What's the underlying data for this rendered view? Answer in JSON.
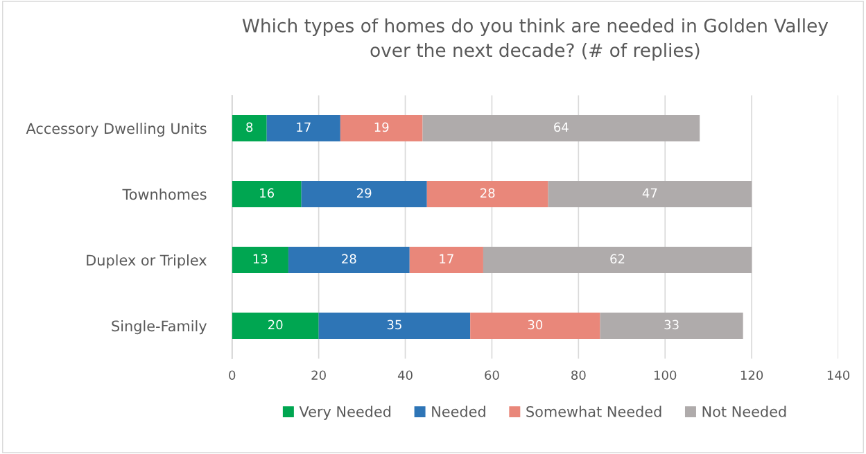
{
  "chart_data": {
    "type": "bar",
    "orientation": "horizontal",
    "stacked": true,
    "title": "Which types of homes do you think are needed in Golden Valley\nover the next decade? (# of replies)",
    "categories": [
      "Accessory Dwelling Units",
      "Townhomes",
      "Duplex or Triplex",
      "Single-Family"
    ],
    "series": [
      {
        "name": "Very Needed",
        "color": "#00a651",
        "values": [
          8,
          16,
          13,
          20
        ]
      },
      {
        "name": "Needed",
        "color": "#2e75b6",
        "values": [
          17,
          29,
          28,
          35
        ]
      },
      {
        "name": "Somewhat Needed",
        "color": "#e9877a",
        "values": [
          19,
          28,
          17,
          30
        ]
      },
      {
        "name": "Not Needed",
        "color": "#afabab",
        "values": [
          64,
          47,
          62,
          33
        ]
      }
    ],
    "xlim": [
      0,
      140
    ],
    "xticks": [
      0,
      20,
      40,
      60,
      80,
      100,
      120,
      140
    ],
    "grid": "x",
    "legend": "bottom",
    "data_labels": true
  }
}
